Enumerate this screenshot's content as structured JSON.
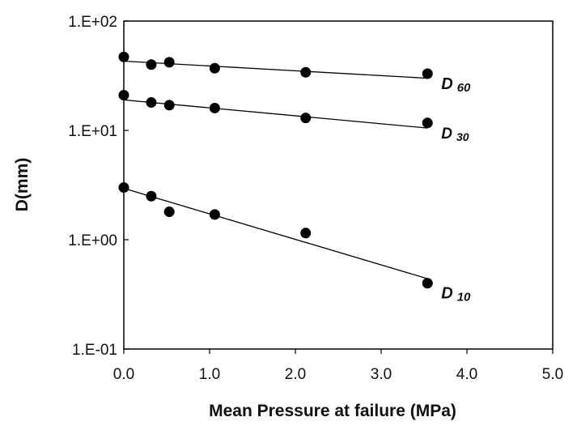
{
  "chart_data": {
    "type": "scatter",
    "xlabel": "Mean Pressure at failure (MPa)",
    "ylabel": "D(mm)",
    "xlim": [
      0,
      5
    ],
    "ylim": [
      0.1,
      100
    ],
    "y_scale": "log",
    "x_ticks": [
      "0.0",
      "1.0",
      "2.0",
      "3.0",
      "4.0",
      "5.0"
    ],
    "y_ticks": [
      "1.E-01",
      "1.E+00",
      "1.E+01",
      "1.E+02"
    ],
    "grid": false,
    "legend": "none",
    "colors": {
      "points": "#000000",
      "lines": "#000000"
    },
    "series": [
      {
        "label_main": "D",
        "label_sub": "60",
        "x": [
          0.0,
          0.32,
          0.53,
          1.06,
          2.12,
          3.54
        ],
        "y": [
          47,
          40,
          42,
          37,
          34,
          33
        ],
        "trend": [
          [
            0.0,
            43
          ],
          [
            3.54,
            30
          ]
        ]
      },
      {
        "label_main": "D",
        "label_sub": "30",
        "x": [
          0.0,
          0.32,
          0.53,
          1.06,
          2.12,
          3.54
        ],
        "y": [
          21,
          18,
          17,
          16,
          13,
          11.7
        ],
        "trend": [
          [
            0.0,
            19
          ],
          [
            3.54,
            10.5
          ]
        ]
      },
      {
        "label_main": "D",
        "label_sub": "10",
        "x": [
          0.0,
          0.32,
          0.53,
          1.06,
          2.12,
          3.54
        ],
        "y": [
          3.0,
          2.5,
          1.8,
          1.7,
          1.15,
          0.4
        ],
        "trend": [
          [
            0.0,
            2.95
          ],
          [
            3.54,
            0.44
          ]
        ]
      }
    ]
  }
}
